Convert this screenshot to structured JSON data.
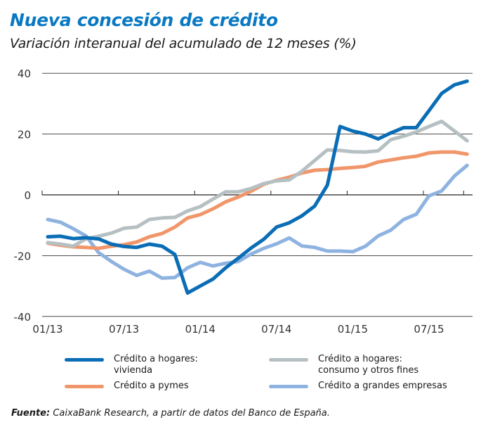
{
  "header": {
    "title": "Nueva concesión de crédito",
    "subtitle": "Variación interanual del acumulado de 12 meses (%)"
  },
  "source": {
    "label": "Fuente:",
    "text": " CaixaBank Research, a partir de datos del Banco de España."
  },
  "colors": {
    "title": "#0a79c2",
    "vivienda": "#0a6db5",
    "consumo": "#b6c0c2",
    "pymes": "#f0966a",
    "grandes": "#8fb3e0"
  },
  "chart_data": {
    "type": "line",
    "title": "Nueva concesión de crédito",
    "subtitle": "Variación interanual del acumulado de 12 meses (%)",
    "xlabel": "",
    "ylabel": "",
    "ylim": [
      -40,
      40
    ],
    "yticks": [
      40,
      20,
      0,
      -20,
      -40
    ],
    "grid": true,
    "legend_position": "bottom",
    "x_start": "01/13",
    "x_end": "10/15",
    "x_frequency": "monthly",
    "xtick_labels": [
      "01/13",
      "07/13",
      "01/14",
      "07/14",
      "01/15",
      "07/15"
    ],
    "series": [
      {
        "name": "Crédito a hogares: vivienda",
        "label_lines": [
          "Crédito a hogares:",
          "vivienda"
        ],
        "color": "#0a6db5",
        "values": [
          -13.8,
          -13.6,
          -14.4,
          -14.1,
          -14.5,
          -16.2,
          -17.0,
          -17.3,
          -16.2,
          -16.9,
          -19.6,
          -32.3,
          -30.0,
          -27.7,
          -24.0,
          -20.8,
          -17.5,
          -14.6,
          -10.6,
          -9.2,
          -6.9,
          -3.7,
          3.2,
          22.5,
          21.0,
          20.0,
          18.4,
          20.4,
          22.1,
          22.1,
          27.7,
          33.4,
          36.2,
          37.4
        ]
      },
      {
        "name": "Crédito a hogares: consumo y otros fines",
        "label_lines": [
          "Crédito a hogares:",
          "consumo y otros fines"
        ],
        "color": "#b6c0c2",
        "values": [
          -15.7,
          -16.2,
          -16.9,
          -14.5,
          -13.6,
          -12.6,
          -11.0,
          -10.6,
          -8.1,
          -7.6,
          -7.4,
          -5.3,
          -3.9,
          -1.4,
          1.0,
          1.0,
          2.1,
          3.7,
          4.6,
          4.9,
          7.8,
          11.3,
          14.8,
          14.6,
          14.2,
          14.1,
          14.5,
          18.2,
          19.3,
          20.7,
          22.5,
          24.2,
          21.0,
          17.8
        ]
      },
      {
        "name": "Crédito a pymes",
        "label_lines": [
          "Crédito a pymes"
        ],
        "color": "#f0966a",
        "values": [
          -15.9,
          -16.6,
          -17.1,
          -17.3,
          -17.6,
          -16.9,
          -16.4,
          -15.5,
          -13.8,
          -12.7,
          -10.6,
          -7.6,
          -6.5,
          -4.6,
          -2.3,
          -0.7,
          1.2,
          3.5,
          4.8,
          5.8,
          7.2,
          8.1,
          8.3,
          8.7,
          9.0,
          9.4,
          10.8,
          11.5,
          12.2,
          12.7,
          13.8,
          14.1,
          14.1,
          13.4
        ]
      },
      {
        "name": "Crédito a grandes empresas",
        "label_lines": [
          "Crédito a grandes empresas"
        ],
        "color": "#8fb3e0",
        "values": [
          -8.1,
          -9.0,
          -11.1,
          -13.5,
          -19.0,
          -21.9,
          -24.5,
          -26.5,
          -25.1,
          -27.4,
          -27.2,
          -24.0,
          -22.2,
          -23.4,
          -22.5,
          -21.9,
          -19.5,
          -17.6,
          -16.1,
          -14.2,
          -16.8,
          -17.3,
          -18.5,
          -18.5,
          -18.7,
          -16.9,
          -13.5,
          -11.6,
          -8.1,
          -6.4,
          -0.3,
          1.3,
          6.2,
          9.7
        ]
      }
    ]
  }
}
